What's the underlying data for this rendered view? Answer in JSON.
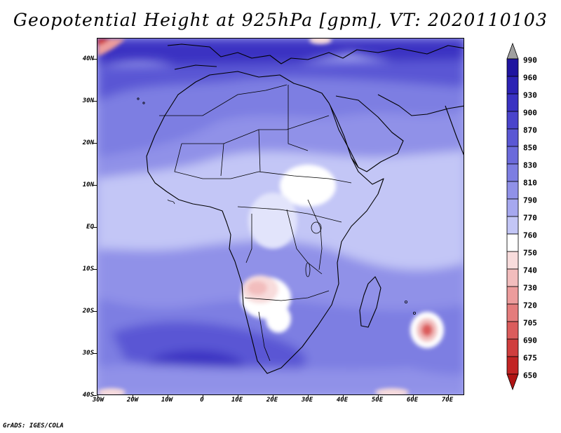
{
  "title": "Geopotential Height at 925hPa [gpm], VT: 2020110103",
  "credit": "GrADS: IGES/COLA",
  "map": {
    "variable": "Geopotential Height",
    "level": "925hPa",
    "units": "gpm",
    "valid_time": "2020110103",
    "lat_labels": [
      "40N",
      "30N",
      "20N",
      "10N",
      "EQ",
      "10S",
      "20S",
      "30S",
      "40S"
    ],
    "lon_labels": [
      "30W",
      "20W",
      "10W",
      "0",
      "10E",
      "20E",
      "30E",
      "40E",
      "50E",
      "60E",
      "70E"
    ]
  },
  "colorbar": {
    "labels": [
      "990",
      "960",
      "930",
      "900",
      "870",
      "850",
      "830",
      "810",
      "790",
      "770",
      "760",
      "750",
      "740",
      "730",
      "720",
      "705",
      "690",
      "675",
      "650"
    ],
    "colors": [
      "#a0a0a0",
      "#1f14a0",
      "#2c22b4",
      "#3a32c2",
      "#4a44cc",
      "#5a57d4",
      "#6b6adb",
      "#7d7ee2",
      "#9091e8",
      "#a6a8ef",
      "#c3c6f6",
      "#ffffff",
      "#f8dcdc",
      "#f2bdbd",
      "#ec9c9c",
      "#e47c7c",
      "#db5c5c",
      "#d03e3e",
      "#c22424",
      "#b01414"
    ]
  }
}
